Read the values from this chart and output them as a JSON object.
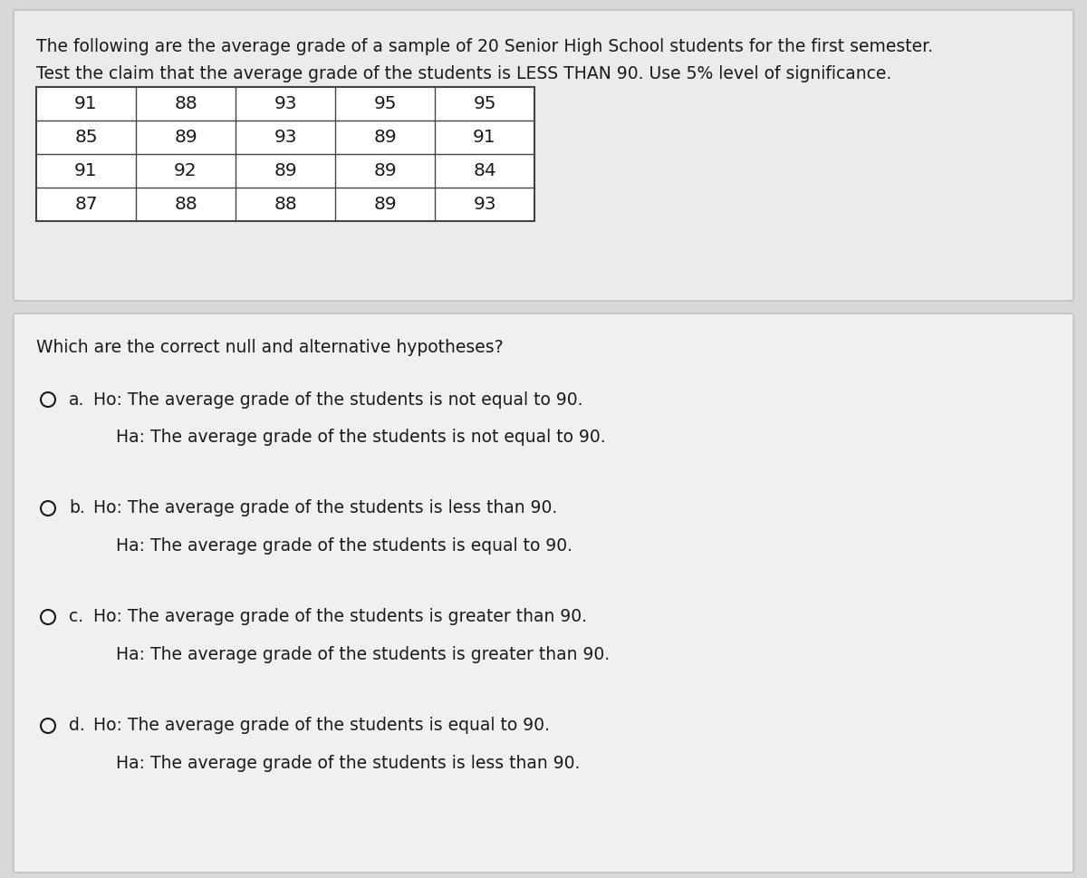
{
  "bg_color": "#d8d8d8",
  "top_panel_bg": "#ebebeb",
  "bottom_panel_bg": "#f0f0f0",
  "intro_line1": "The following are the average grade of a sample of 20 Senior High School students for the first semester.",
  "intro_line2": "Test the claim that the average grade of the students is LESS THAN 90. Use 5% level of significance.",
  "table_data": [
    [
      91,
      88,
      93,
      95,
      95
    ],
    [
      85,
      89,
      93,
      89,
      91
    ],
    [
      91,
      92,
      89,
      89,
      84
    ],
    [
      87,
      88,
      88,
      89,
      93
    ]
  ],
  "question": "Which are the correct null and alternative hypotheses?",
  "options": [
    {
      "letter": "a.",
      "ho": "Ho: The average grade of the students is not equal to 90.",
      "ha": "Ha: The average grade of the students is not equal to 90."
    },
    {
      "letter": "b.",
      "ho": "Ho: The average grade of the students is less than 90.",
      "ha": "Ha: The average grade of the students is equal to 90."
    },
    {
      "letter": "c.",
      "ho": "Ho: The average grade of the students is greater than 90.",
      "ha": "Ha: The average grade of the students is greater than 90."
    },
    {
      "letter": "d.",
      "ho": "Ho: The average grade of the students is equal to 90.",
      "ha": "Ha: The average grade of the students is less than 90."
    }
  ],
  "text_color": "#1a1a1a",
  "table_border_color": "#444444",
  "panel_border_color": "#bbbbbb",
  "font_size_intro": 13.5,
  "font_size_table": 14.5,
  "font_size_question": 13.5,
  "font_size_options": 13.5
}
